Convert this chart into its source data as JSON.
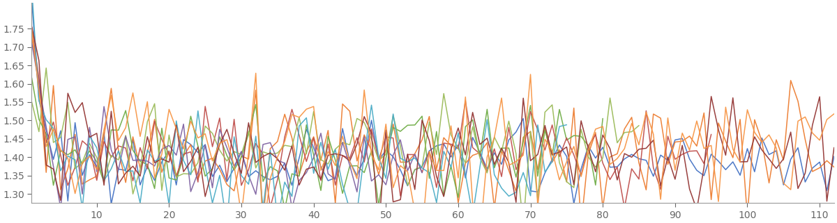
{
  "n_bars": 112,
  "xlim": [
    1,
    112
  ],
  "ylim": [
    1.275,
    1.82
  ],
  "yticks": [
    1.3,
    1.35,
    1.4,
    1.45,
    1.5,
    1.55,
    1.6,
    1.65,
    1.7,
    1.75
  ],
  "xticks": [
    10,
    20,
    30,
    40,
    50,
    60,
    70,
    80,
    90,
    100,
    110
  ],
  "colors": [
    "#4472C4",
    "#ED7D31",
    "#70AD47",
    "#C0504D",
    "#9BBB59",
    "#8064A2",
    "#4BACC6",
    "#943634",
    "#F79646"
  ],
  "linewidth": 1.1,
  "background_color": "#FFFFFF",
  "tick_color": "#666666",
  "tick_fontsize": 10,
  "spine_color": "#999999"
}
